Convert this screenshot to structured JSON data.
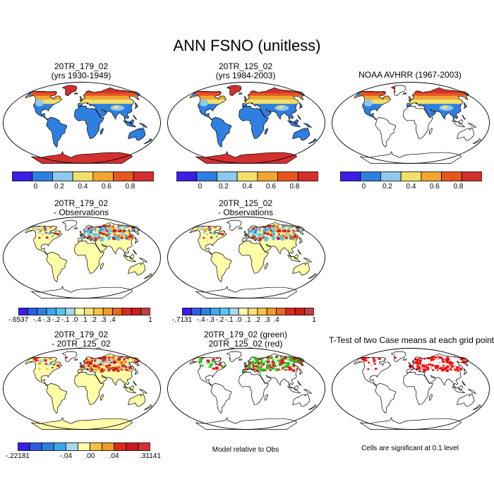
{
  "title": "ANN FSNO (unitless)",
  "panels": [
    {
      "line1": "20TR_179_02",
      "line2": "(yrs 1930-1949)"
    },
    {
      "line1": "20TR_125_02",
      "line2": "(yrs 1984-2003)"
    },
    {
      "line1": "NOAA AVHRR (1967-2003)",
      "line2": ""
    },
    {
      "line1": "20TR_179_02",
      "line2": "- Observations"
    },
    {
      "line1": "20TR_125_02",
      "line2": "- Observations"
    },
    {
      "line1": "20TR_179_02",
      "line2": "- 20TR_125_02"
    },
    {
      "line1": "20TR_179_02 (green)",
      "line2": "20TR_125_02 (red)"
    },
    {
      "line1": "T-Test of two Case means at each grid point",
      "line2": ""
    }
  ],
  "colorbars": {
    "abs": {
      "colors": [
        "#3b1de6",
        "#2f7fe0",
        "#8ec8ec",
        "#f2e06a",
        "#f2a531",
        "#e8561e",
        "#d42f2f"
      ],
      "ticks": [
        "0",
        "0.2",
        "0.4",
        "0.6",
        "0.8"
      ]
    },
    "diff1": {
      "colors": [
        "#3b1de6",
        "#2c5ce4",
        "#2f7fe0",
        "#3fa6ee",
        "#56c6f0",
        "#a6d8ee",
        "#ffffa8",
        "#f8e07a",
        "#f6c243",
        "#f29a28",
        "#ea6a1c",
        "#dc2a18",
        "#cc1c1c",
        "#c04040"
      ],
      "ticks": [
        "-.6537",
        "-.4",
        "-.3",
        "-.2",
        "-.1",
        ".0",
        ".1",
        ".2",
        ".3",
        ".4",
        "1"
      ]
    },
    "diff2": {
      "colors": [
        "#3b1de6",
        "#2c5ce4",
        "#2f7fe0",
        "#3fa6ee",
        "#56c6f0",
        "#a6d8ee",
        "#ffffa8",
        "#f8e07a",
        "#f6c243",
        "#f29a28",
        "#ea6a1c",
        "#dc2a18",
        "#cc1c1c",
        "#c04040"
      ],
      "ticks": [
        "-.7131",
        "-.4",
        "-.3",
        "-.2",
        "-.1",
        ".0",
        ".1",
        ".2",
        ".3",
        ".4",
        "1"
      ]
    },
    "diff3": {
      "colors": [
        "#3b1de6",
        "#2c5ce4",
        "#2f7fe0",
        "#3fa6ee",
        "#a6d8ee",
        "#ffffa8",
        "#f6c243",
        "#f29a28",
        "#dc2a18",
        "#cc1c1c",
        "#d43030"
      ],
      "ticks": [
        "-.22181",
        "-.04",
        ".00",
        ".04",
        ".31141"
      ]
    }
  },
  "notes": {
    "model_relative": "Model relative to Obs",
    "significance": "Cells are significant at 0.1 level"
  },
  "colors": {
    "snow_high": "#d42f2f",
    "snow_mid": "#f2a531",
    "snow_low": "#2f7fe0",
    "diff_pale": "#ffffa8",
    "green": "#22cc22",
    "red": "#ee1111"
  }
}
